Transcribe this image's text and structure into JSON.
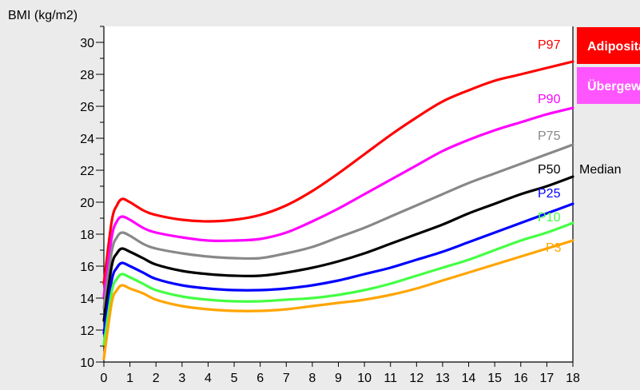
{
  "chart_data": {
    "type": "line",
    "title": "",
    "xlabel": "",
    "ylabel": "BMI (kg/m2)",
    "xlim": [
      0,
      18
    ],
    "ylim": [
      10,
      31
    ],
    "x_ticks": [
      0,
      1,
      2,
      3,
      4,
      5,
      6,
      7,
      8,
      9,
      10,
      11,
      12,
      13,
      14,
      15,
      16,
      17,
      18
    ],
    "y_ticks": [
      10,
      12,
      14,
      16,
      18,
      20,
      22,
      24,
      26,
      28,
      30
    ],
    "grid": false,
    "median_label": "Median",
    "categories_badges": [
      {
        "label": "Adipositas",
        "color": "#ff0000"
      },
      {
        "label": "Übergewicht",
        "color": "#ff55ff"
      }
    ],
    "x": [
      0,
      0.3,
      0.5,
      0.7,
      1,
      1.5,
      2,
      3,
      4,
      5,
      6,
      7,
      8,
      9,
      10,
      11,
      12,
      13,
      14,
      15,
      16,
      17,
      18
    ],
    "series": [
      {
        "name": "P97",
        "color": "#ff0000",
        "values": [
          14.9,
          18.8,
          19.8,
          20.2,
          20.0,
          19.5,
          19.2,
          18.9,
          18.8,
          18.9,
          19.2,
          19.8,
          20.7,
          21.8,
          23.0,
          24.2,
          25.3,
          26.3,
          27.0,
          27.6,
          28.0,
          28.4,
          28.8
        ]
      },
      {
        "name": "P90",
        "color": "#ff00ff",
        "values": [
          14.1,
          17.8,
          18.8,
          19.1,
          18.9,
          18.4,
          18.1,
          17.8,
          17.6,
          17.6,
          17.7,
          18.1,
          18.8,
          19.6,
          20.5,
          21.4,
          22.3,
          23.2,
          23.9,
          24.5,
          25.0,
          25.5,
          25.9
        ]
      },
      {
        "name": "P75",
        "color": "#888888",
        "values": [
          13.4,
          16.9,
          17.8,
          18.1,
          17.9,
          17.4,
          17.1,
          16.8,
          16.6,
          16.5,
          16.5,
          16.8,
          17.2,
          17.8,
          18.4,
          19.1,
          19.8,
          20.5,
          21.2,
          21.8,
          22.4,
          23.0,
          23.6
        ]
      },
      {
        "name": "P50",
        "color": "#000000",
        "values": [
          12.6,
          16.0,
          16.8,
          17.1,
          16.9,
          16.5,
          16.1,
          15.7,
          15.5,
          15.4,
          15.4,
          15.6,
          15.9,
          16.3,
          16.8,
          17.4,
          18.0,
          18.6,
          19.3,
          19.9,
          20.5,
          21.0,
          21.6
        ]
      },
      {
        "name": "P25",
        "color": "#0000ff",
        "values": [
          11.8,
          15.1,
          15.9,
          16.2,
          16.0,
          15.6,
          15.2,
          14.8,
          14.6,
          14.5,
          14.5,
          14.6,
          14.8,
          15.1,
          15.5,
          15.9,
          16.4,
          16.9,
          17.5,
          18.1,
          18.7,
          19.3,
          19.9
        ]
      },
      {
        "name": "P10",
        "color": "#44ff44",
        "values": [
          11.1,
          14.4,
          15.2,
          15.5,
          15.3,
          14.9,
          14.5,
          14.1,
          13.9,
          13.8,
          13.8,
          13.9,
          14.0,
          14.2,
          14.5,
          14.9,
          15.4,
          15.9,
          16.4,
          17.0,
          17.6,
          18.1,
          18.7
        ]
      },
      {
        "name": "P3",
        "color": "#ffa500",
        "values": [
          10.2,
          13.7,
          14.5,
          14.8,
          14.6,
          14.3,
          13.9,
          13.5,
          13.3,
          13.2,
          13.2,
          13.3,
          13.5,
          13.7,
          13.9,
          14.2,
          14.6,
          15.1,
          15.6,
          16.1,
          16.6,
          17.1,
          17.6
        ]
      }
    ]
  }
}
